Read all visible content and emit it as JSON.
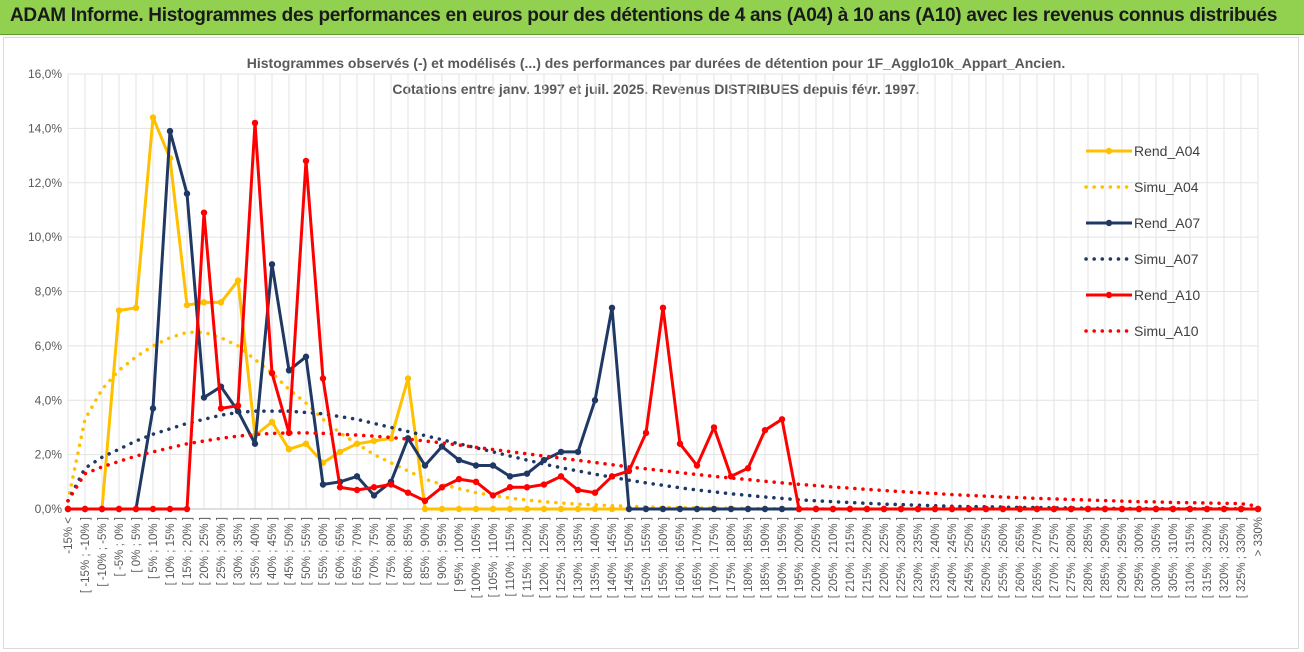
{
  "header": {
    "title": "ADAM Informe. Histogrammes des performances en euros pour des détentions de 4 ans (A04) à 10 ans (A10) avec les revenus connus distribués"
  },
  "chart_data": {
    "type": "line",
    "title": "Histogrammes observés (-) et modélisés (...) des performances par durées de détention pour 1F_Agglo10k_Appart_Ancien.",
    "subtitle": "Cotations entre janv. 1997 et juil. 2025. Revenus DISTRIBUES depuis févr. 1997.",
    "ylim": [
      0,
      16
    ],
    "yticks": [
      "0,0%",
      "2,0%",
      "4,0%",
      "6,0%",
      "8,0%",
      "10,0%",
      "12,0%",
      "14,0%",
      "16,0%"
    ],
    "grid": true,
    "legend_position": "right",
    "categories": [
      "-15% <",
      "[ -15% ; -10% ]",
      "[ -10% ; -5% ]",
      "[ -5% ; 0% ]",
      "[ 0% ; 5% ]",
      "[ 5% ; 10% ]",
      "[ 10% ; 15% ]",
      "[ 15% ; 20% ]",
      "[ 20% ; 25% ]",
      "[ 25% ; 30% ]",
      "[ 30% ; 35% ]",
      "[ 35% ; 40% ]",
      "[ 40% ; 45% ]",
      "[ 45% ; 50% ]",
      "[ 50% ; 55% ]",
      "[ 55% ; 60% ]",
      "[ 60% ; 65% ]",
      "[ 65% ; 70% ]",
      "[ 70% ; 75% ]",
      "[ 75% ; 80% ]",
      "[ 80% ; 85% ]",
      "[ 85% ; 90% ]",
      "[ 90% ; 95% ]",
      "[ 95% ; 100% ]",
      "[ 100% ; 105% ]",
      "[ 105% ; 110% ]",
      "[ 110% ; 115% ]",
      "[ 115% ; 120% ]",
      "[ 120% ; 125% ]",
      "[ 125% ; 130% ]",
      "[ 130% ; 135% ]",
      "[ 135% ; 140% ]",
      "[ 140% ; 145% ]",
      "[ 145% ; 150% ]",
      "[ 150% ; 155% ]",
      "[ 155% ; 160% ]",
      "[ 160% ; 165% ]",
      "[ 165% ; 170% ]",
      "[ 170% ; 175% ]",
      "[ 175% ; 180% ]",
      "[ 180% ; 185% ]",
      "[ 185% ; 190% ]",
      "[ 190% ; 195% ]",
      "[ 195% ; 200% ]",
      "[ 200% ; 205% ]",
      "[ 205% ; 210% ]",
      "[ 210% ; 215% ]",
      "[ 215% ; 220% ]",
      "[ 220% ; 225% ]",
      "[ 225% ; 230% ]",
      "[ 230% ; 235% ]",
      "[ 235% ; 240% ]",
      "[ 240% ; 245% ]",
      "[ 245% ; 250% ]",
      "[ 250% ; 255% ]",
      "[ 255% ; 260% ]",
      "[ 260% ; 265% ]",
      "[ 265% ; 270% ]",
      "[ 270% ; 275% ]",
      "[ 275% ; 280% ]",
      "[ 280% ; 285% ]",
      "[ 285% ; 290% ]",
      "[ 290% ; 295% ]",
      "[ 295% ; 300% ]",
      "[ 300% ; 305% ]",
      "[ 305% ; 310% ]",
      "[ 310% ; 315% ]",
      "[ 315% ; 320% ]",
      "[ 320% ; 325% ]",
      "[ 325% ; 330% ]",
      "> 330%"
    ],
    "series": [
      {
        "name": "Rend_A04",
        "color": "#ffc000",
        "style": "solid",
        "values": [
          0,
          0,
          0,
          7.3,
          7.4,
          14.4,
          12.9,
          7.5,
          7.6,
          7.6,
          8.4,
          2.7,
          3.2,
          2.2,
          2.4,
          1.7,
          2.1,
          2.4,
          2.5,
          2.6,
          4.8,
          0,
          0,
          0,
          0,
          0,
          0,
          0,
          0,
          0,
          0,
          0,
          0,
          0,
          0,
          0,
          0,
          0,
          0,
          0,
          0,
          0,
          0,
          0,
          0,
          0,
          0,
          0,
          0,
          0,
          0,
          0,
          0,
          0,
          0,
          0,
          0,
          0,
          0,
          0,
          0,
          0,
          0,
          0,
          0,
          0,
          0,
          0,
          0,
          0,
          0
        ]
      },
      {
        "name": "Simu_A04",
        "color": "#ffc000",
        "style": "dotted",
        "values": [
          0.3,
          3.3,
          4.4,
          5.1,
          5.6,
          6.0,
          6.3,
          6.5,
          6.5,
          6.3,
          6.0,
          5.5,
          5.0,
          4.4,
          3.9,
          3.3,
          2.8,
          2.4,
          2.0,
          1.7,
          1.4,
          1.1,
          0.9,
          0.75,
          0.6,
          0.5,
          0.4,
          0.33,
          0.27,
          0.22,
          0.18,
          0.15,
          0.12,
          0.1,
          0.08,
          0.06,
          0.05,
          0.04,
          0.03,
          0.03,
          0.02,
          0.02,
          0.01,
          0.01,
          0.01,
          0.01,
          0,
          0,
          0,
          0,
          0,
          0,
          0,
          0,
          0,
          0,
          0,
          0,
          0,
          0,
          0,
          0,
          0,
          0,
          0,
          0,
          0,
          0,
          0,
          0,
          0
        ]
      },
      {
        "name": "Rend_A07",
        "color": "#1f3864",
        "style": "solid",
        "values": [
          0,
          0,
          0,
          0,
          0,
          3.7,
          13.9,
          11.6,
          4.1,
          4.5,
          3.6,
          2.4,
          9.0,
          5.1,
          5.6,
          0.9,
          1.0,
          1.2,
          0.5,
          1.0,
          2.6,
          1.6,
          2.3,
          1.8,
          1.6,
          1.6,
          1.2,
          1.3,
          1.8,
          2.1,
          2.1,
          4.0,
          7.4,
          0,
          0,
          0,
          0,
          0,
          0,
          0,
          0,
          0,
          0,
          0,
          0,
          0,
          0,
          0,
          0,
          0,
          0,
          0,
          0,
          0,
          0,
          0,
          0,
          0,
          0,
          0,
          0,
          0,
          0,
          0,
          0,
          0,
          0,
          0,
          0,
          0,
          0
        ]
      },
      {
        "name": "Simu_A07",
        "color": "#1f3864",
        "style": "dotted",
        "values": [
          0.3,
          1.5,
          1.9,
          2.2,
          2.5,
          2.75,
          2.95,
          3.15,
          3.3,
          3.45,
          3.55,
          3.6,
          3.6,
          3.6,
          3.55,
          3.5,
          3.4,
          3.3,
          3.15,
          3.0,
          2.85,
          2.7,
          2.55,
          2.4,
          2.25,
          2.1,
          1.95,
          1.8,
          1.65,
          1.52,
          1.4,
          1.28,
          1.17,
          1.06,
          0.96,
          0.87,
          0.78,
          0.7,
          0.63,
          0.56,
          0.5,
          0.44,
          0.39,
          0.34,
          0.3,
          0.27,
          0.24,
          0.21,
          0.18,
          0.16,
          0.14,
          0.12,
          0.1,
          0.09,
          0.08,
          0.07,
          0.06,
          0.05,
          0.04,
          0.04,
          0.03,
          0.03,
          0.02,
          0.02,
          0.02,
          0.01,
          0.01,
          0.01,
          0.01,
          0.01,
          0
        ]
      },
      {
        "name": "Rend_A10",
        "color": "#ff0000",
        "style": "solid",
        "values": [
          0,
          0,
          0,
          0,
          0,
          0,
          0,
          0,
          10.9,
          3.7,
          3.8,
          14.2,
          5.0,
          2.8,
          12.8,
          4.8,
          0.8,
          0.7,
          0.8,
          0.9,
          0.6,
          0.3,
          0.8,
          1.1,
          1.0,
          0.5,
          0.8,
          0.8,
          0.9,
          1.2,
          0.7,
          0.6,
          1.2,
          1.4,
          2.8,
          7.4,
          2.4,
          1.6,
          3.0,
          1.2,
          1.5,
          2.9,
          3.3,
          0,
          0,
          0,
          0,
          0,
          0,
          0,
          0,
          0,
          0,
          0,
          0,
          0,
          0,
          0,
          0,
          0,
          0,
          0,
          0,
          0,
          0,
          0,
          0,
          0,
          0,
          0,
          0
        ]
      },
      {
        "name": "Simu_A10",
        "color": "#ff0000",
        "style": "dotted",
        "values": [
          0.3,
          1.3,
          1.55,
          1.75,
          1.95,
          2.1,
          2.25,
          2.4,
          2.5,
          2.6,
          2.68,
          2.74,
          2.78,
          2.8,
          2.8,
          2.78,
          2.75,
          2.72,
          2.68,
          2.63,
          2.57,
          2.5,
          2.43,
          2.35,
          2.27,
          2.19,
          2.11,
          2.03,
          1.95,
          1.87,
          1.79,
          1.71,
          1.63,
          1.55,
          1.48,
          1.41,
          1.34,
          1.27,
          1.2,
          1.14,
          1.08,
          1.02,
          0.96,
          0.91,
          0.86,
          0.81,
          0.77,
          0.72,
          0.68,
          0.64,
          0.6,
          0.57,
          0.53,
          0.5,
          0.47,
          0.44,
          0.42,
          0.39,
          0.37,
          0.35,
          0.33,
          0.31,
          0.29,
          0.27,
          0.26,
          0.24,
          0.23,
          0.22,
          0.21,
          0.2,
          0.1
        ]
      }
    ]
  }
}
